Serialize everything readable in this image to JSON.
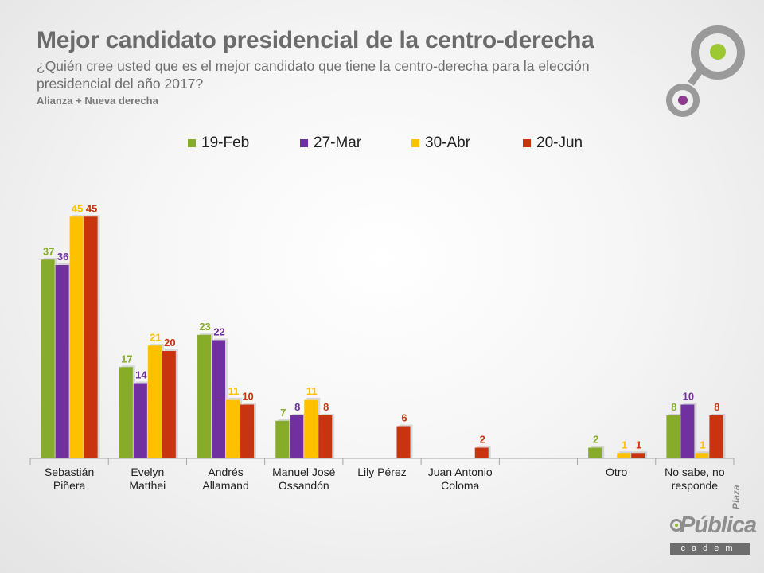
{
  "header": {
    "title": "Mejor candidato presidencial de la centro-derecha",
    "subtitle": "¿Quién cree usted que es el mejor candidato que tiene la centro-derecha para la elección presidencial del año 2017?",
    "note": "Alianza + Nueva derecha"
  },
  "brand": {
    "plaza": "Plaza",
    "publica": "Pública",
    "cadem": "cadem"
  },
  "colors": {
    "green": "#86ac2a",
    "purple": "#7030a0",
    "yellow": "#ffc000",
    "red": "#c8340f"
  },
  "chart_data": {
    "type": "bar",
    "title": "Mejor candidato presidencial de la centro-derecha",
    "categories": [
      [
        "Sebastián",
        "Piñera"
      ],
      [
        "Evelyn",
        "Matthei"
      ],
      [
        "Andrés",
        "Allamand"
      ],
      [
        "Manuel José",
        "Ossandón"
      ],
      [
        "Lily Pérez"
      ],
      [
        "Juan Antonio",
        "Coloma"
      ],
      [
        ""
      ],
      [
        "Otro"
      ],
      [
        "No sabe, no",
        "responde"
      ]
    ],
    "series": [
      {
        "name": "19-Feb",
        "color": "#86ac2a",
        "values": [
          37,
          17,
          23,
          7,
          null,
          null,
          null,
          2,
          8
        ]
      },
      {
        "name": "27-Mar",
        "color": "#7030a0",
        "values": [
          36,
          14,
          22,
          8,
          null,
          null,
          null,
          null,
          10
        ]
      },
      {
        "name": "30-Abr",
        "color": "#ffc000",
        "values": [
          45,
          21,
          11,
          11,
          null,
          null,
          null,
          1,
          1
        ]
      },
      {
        "name": "20-Jun",
        "color": "#c8340f",
        "values": [
          45,
          20,
          10,
          8,
          6,
          2,
          null,
          1,
          8
        ]
      }
    ],
    "ylim": [
      0,
      50
    ],
    "legend_position": "top",
    "grid": false
  }
}
